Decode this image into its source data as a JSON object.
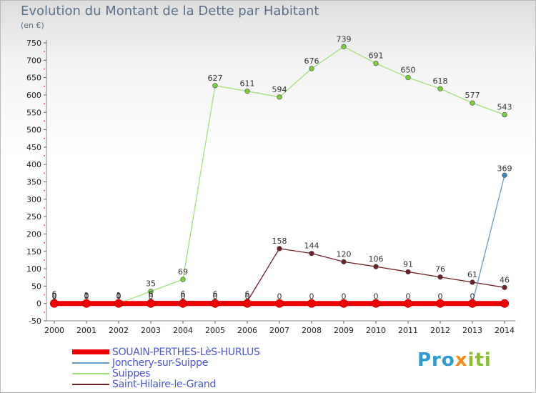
{
  "header": {
    "title": "Evolution du Montant de la Dette par Habitant",
    "subtitle": "(en €)"
  },
  "logo": {
    "parts": [
      "Pro",
      "x",
      "iti"
    ]
  },
  "chart_data": {
    "type": "line",
    "title": "Evolution du Montant de la Dette par Habitant",
    "ylabel": "(en €)",
    "xlabel": "",
    "x": [
      "2000",
      "2001",
      "2002",
      "2003",
      "2004",
      "2005",
      "2006",
      "2007",
      "2008",
      "2009",
      "2010",
      "2011",
      "2012",
      "2013",
      "2014"
    ],
    "ylim": [
      -50,
      750
    ],
    "yticks": [
      -50,
      0,
      50,
      100,
      150,
      200,
      250,
      300,
      350,
      400,
      450,
      500,
      550,
      600,
      650,
      700,
      750
    ],
    "grid": false,
    "legend_position": "bottom-left",
    "series": [
      {
        "name": "SOUAIN-PERTHES-LèS-HURLUS",
        "color": "#ee0000",
        "values": [
          0,
          0,
          0,
          0,
          0,
          0,
          0,
          0,
          0,
          0,
          0,
          0,
          0,
          0,
          0
        ],
        "labels": [
          "",
          "",
          "",
          "",
          "",
          "",
          "",
          "",
          "",
          "",
          "",
          "",
          "",
          "",
          ""
        ]
      },
      {
        "name": "Jonchery-sur-Suippe",
        "color": "#6a9ac9",
        "values": [
          0,
          0,
          0,
          0,
          0,
          0,
          0,
          0,
          0,
          0,
          0,
          0,
          0,
          0,
          369
        ],
        "labels": [
          "0",
          "0",
          "0",
          "0",
          "0",
          "0",
          "0",
          "0",
          "0",
          "0",
          "0",
          "0",
          "0",
          "0",
          "369"
        ]
      },
      {
        "name": "Suippes",
        "color": "#a3df7a",
        "values": [
          0,
          0,
          0,
          35,
          69,
          627,
          611,
          594,
          676,
          739,
          691,
          650,
          618,
          577,
          543
        ],
        "labels": [
          "0",
          "0",
          "0",
          "35",
          "69",
          "627",
          "611",
          "594",
          "676",
          "739",
          "691",
          "650",
          "618",
          "577",
          "543"
        ]
      },
      {
        "name": "Saint-Hilaire-le-Grand",
        "color": "#6e2028",
        "values": [
          6,
          1,
          1,
          6,
          6,
          6,
          6,
          158,
          144,
          120,
          106,
          91,
          76,
          61,
          46
        ],
        "labels": [
          "6",
          "1",
          "1",
          "6",
          "6",
          "6",
          "6",
          "158",
          "144",
          "120",
          "106",
          "91",
          "76",
          "61",
          "46"
        ]
      }
    ]
  }
}
